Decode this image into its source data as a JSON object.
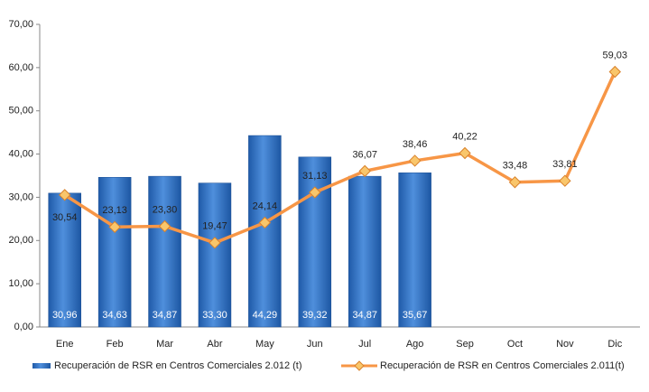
{
  "chart_data": {
    "type": "bar",
    "categories": [
      "Ene",
      "Feb",
      "Mar",
      "Abr",
      "May",
      "Jun",
      "Jul",
      "Ago",
      "Sep",
      "Oct",
      "Nov",
      "Dic"
    ],
    "series": [
      {
        "name": "Recuperación de RSR en Centros Comerciales 2.012 (t)",
        "type": "bar",
        "color": "#2e6fc2",
        "values": [
          30.96,
          34.63,
          34.87,
          33.3,
          44.29,
          39.32,
          34.87,
          35.67,
          null,
          null,
          null,
          null
        ],
        "value_labels": [
          "30,96",
          "34,63",
          "34,87",
          "33,30",
          "44,29",
          "39,32",
          "34,87",
          "35,67",
          null,
          null,
          null,
          null
        ]
      },
      {
        "name": "Recuperación de RSR en Centros Comerciales 2.011(t)",
        "type": "line",
        "color": "#f79646",
        "values": [
          30.54,
          23.13,
          23.3,
          19.47,
          24.14,
          31.13,
          36.07,
          38.46,
          40.22,
          33.48,
          33.81,
          59.03
        ],
        "value_labels": [
          "30,54",
          "23,13",
          "23,30",
          "19,47",
          "24,14",
          "31,13",
          "36,07",
          "38,46",
          "40,22",
          "33,48",
          "33,81",
          "59,03"
        ]
      }
    ],
    "ylim": [
      0,
      70
    ],
    "yticks": [
      {
        "value": 0,
        "label": "0,00"
      },
      {
        "value": 10,
        "label": "10,00"
      },
      {
        "value": 20,
        "label": "20,00"
      },
      {
        "value": 30,
        "label": "30,00"
      },
      {
        "value": 40,
        "label": "40,00"
      },
      {
        "value": 50,
        "label": "50,00"
      },
      {
        "value": 60,
        "label": "60,00"
      },
      {
        "value": 70,
        "label": "70,00"
      }
    ],
    "grid": false,
    "legend": "bottom"
  }
}
